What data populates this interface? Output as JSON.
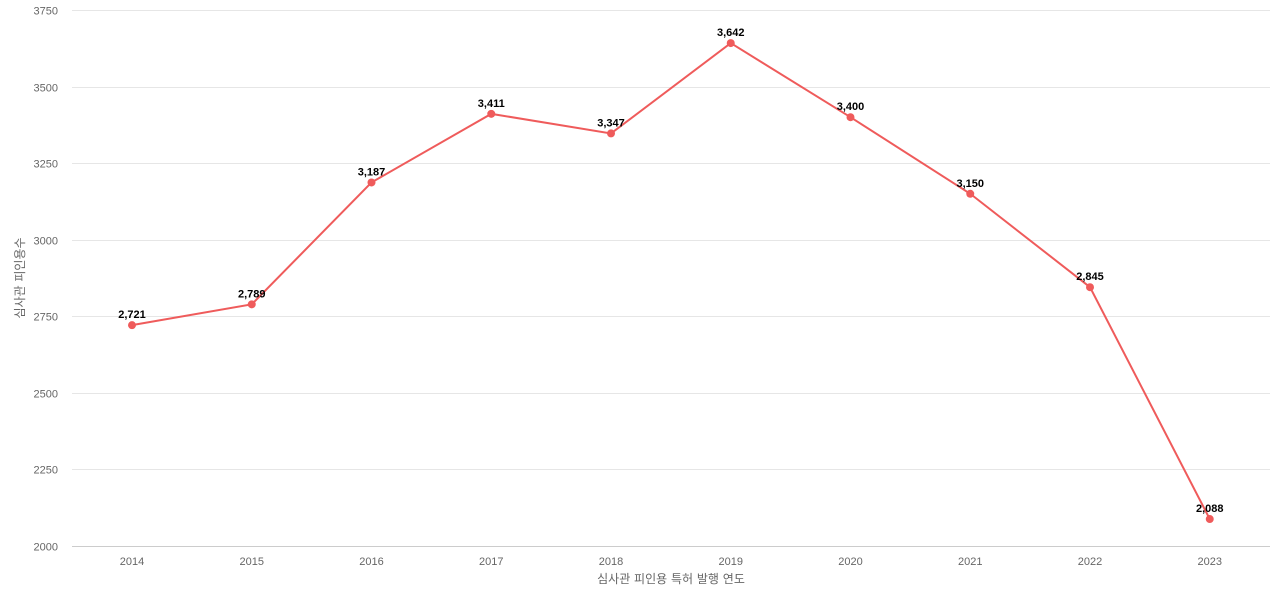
{
  "chart_data": {
    "type": "line",
    "title": "",
    "xlabel": "심사관 피인용 특허 발행 연도",
    "ylabel": "심사관 피인용수",
    "categories": [
      "2014",
      "2015",
      "2016",
      "2017",
      "2018",
      "2019",
      "2020",
      "2021",
      "2022",
      "2023"
    ],
    "series": [
      {
        "values": [
          2721,
          2789,
          3187,
          3411,
          3347,
          3642,
          3400,
          3150,
          2845,
          2088
        ],
        "labels": [
          "2,721",
          "2,789",
          "3,187",
          "3,411",
          "3,347",
          "3,642",
          "3,400",
          "3,150",
          "2,845",
          "2,088"
        ],
        "color": "#ef5b5b"
      }
    ],
    "ylim": [
      2000,
      3750
    ],
    "yticks": [
      "2000",
      "2250",
      "2500",
      "2750",
      "3000",
      "3250",
      "3500",
      "3750"
    ],
    "grid": true,
    "legend": "none"
  }
}
